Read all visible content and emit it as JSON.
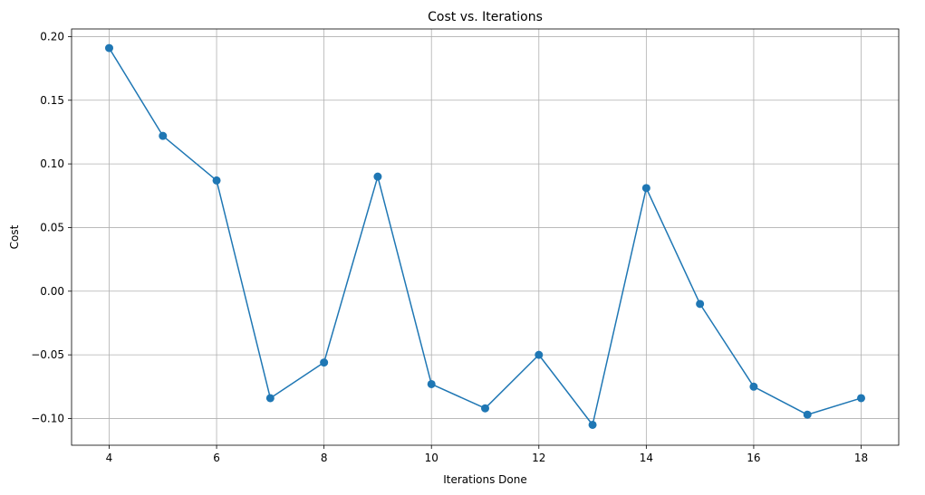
{
  "chart_data": {
    "type": "line",
    "title": "Cost vs. Iterations",
    "xlabel": "Iterations Done",
    "ylabel": "Cost",
    "xlim": [
      3.3,
      18.7
    ],
    "ylim": [
      -0.121,
      0.206
    ],
    "xticks": [
      4,
      6,
      8,
      10,
      12,
      14,
      16,
      18
    ],
    "xtick_labels": [
      "4",
      "6",
      "8",
      "10",
      "12",
      "14",
      "16",
      "18"
    ],
    "yticks": [
      -0.1,
      -0.05,
      0.0,
      0.05,
      0.1,
      0.15,
      0.2
    ],
    "ytick_labels": [
      "−0.10",
      "−0.05",
      "0.00",
      "0.05",
      "0.10",
      "0.15",
      "0.20"
    ],
    "grid": true,
    "marker": "circle",
    "color": "#1f77b4",
    "series": [
      {
        "x": [
          4,
          5,
          6,
          7,
          8,
          9,
          10,
          11,
          12,
          13,
          14,
          15,
          16,
          17,
          18
        ],
        "values": [
          0.191,
          0.122,
          0.087,
          -0.084,
          -0.056,
          0.09,
          -0.073,
          -0.092,
          -0.05,
          -0.105,
          0.081,
          -0.01,
          -0.075,
          -0.097,
          -0.084
        ]
      }
    ]
  }
}
